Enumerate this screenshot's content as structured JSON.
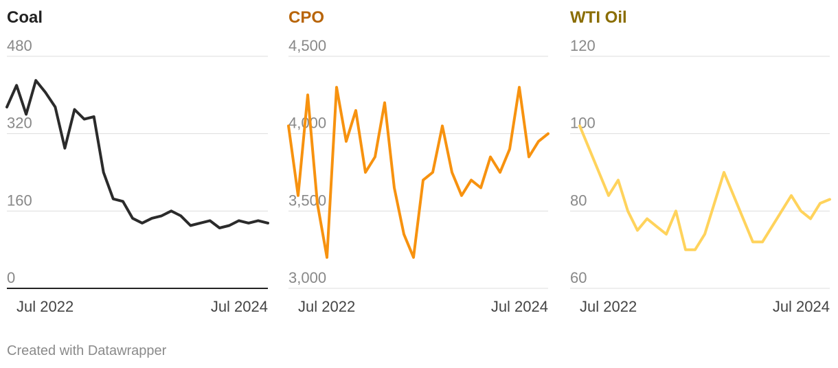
{
  "footer": {
    "credit": "Created with Datawrapper"
  },
  "chart_data": [
    {
      "type": "line",
      "title": "Coal",
      "title_color": "#222222",
      "line_color": "#2b2b2b",
      "y_ticks": [
        0,
        160,
        320,
        480
      ],
      "y_tick_labels": [
        "0",
        "160",
        "320",
        "480"
      ],
      "ylim": [
        0,
        480
      ],
      "x_tick_labels": [
        "Jul 2022",
        "Jul 2024"
      ],
      "x_ticks": [
        "2022-07",
        "2024-07"
      ],
      "xlim": [
        "2022-05",
        "2024-08"
      ],
      "x": [
        "2022-05",
        "2022-06",
        "2022-07",
        "2022-08",
        "2022-09",
        "2022-10",
        "2022-11",
        "2022-12",
        "2023-01",
        "2023-02",
        "2023-03",
        "2023-04",
        "2023-05",
        "2023-06",
        "2023-07",
        "2023-08",
        "2023-09",
        "2023-10",
        "2023-11",
        "2023-12",
        "2024-01",
        "2024-02",
        "2024-03",
        "2024-04",
        "2024-05",
        "2024-06",
        "2024-07",
        "2024-08"
      ],
      "values": [
        375,
        420,
        360,
        430,
        405,
        375,
        290,
        370,
        350,
        355,
        240,
        185,
        180,
        145,
        135,
        145,
        150,
        160,
        150,
        130,
        135,
        140,
        125,
        130,
        140,
        135,
        140,
        135
      ]
    },
    {
      "type": "line",
      "title": "CPO",
      "title_color": "#b8650a",
      "line_color": "#f7920f",
      "y_ticks": [
        3000,
        3500,
        4000,
        4500
      ],
      "y_tick_labels": [
        "3,000",
        "3,500",
        "4,000",
        "4,500"
      ],
      "ylim": [
        3000,
        4500
      ],
      "x_tick_labels": [
        "Jul 2022",
        "Jul 2024"
      ],
      "x_ticks": [
        "2022-07",
        "2024-07"
      ],
      "xlim": [
        "2022-05",
        "2024-08"
      ],
      "x": [
        "2022-05",
        "2022-06",
        "2022-07",
        "2022-08",
        "2022-09",
        "2022-10",
        "2022-11",
        "2022-12",
        "2023-01",
        "2023-02",
        "2023-03",
        "2023-04",
        "2023-05",
        "2023-06",
        "2023-07",
        "2023-08",
        "2023-09",
        "2023-10",
        "2023-11",
        "2023-12",
        "2024-01",
        "2024-02",
        "2024-03",
        "2024-04",
        "2024-05",
        "2024-06",
        "2024-07",
        "2024-08"
      ],
      "values": [
        4050,
        3600,
        4250,
        3550,
        3200,
        4300,
        3950,
        4150,
        3750,
        3850,
        4200,
        3650,
        3350,
        3200,
        3700,
        3750,
        4050,
        3750,
        3600,
        3700,
        3650,
        3850,
        3750,
        3900,
        4300,
        3850,
        3950,
        4000
      ]
    },
    {
      "type": "line",
      "title": "WTI Oil",
      "title_color": "#8a6d00",
      "line_color": "#ffd35c",
      "y_ticks": [
        60,
        80,
        100,
        120
      ],
      "y_tick_labels": [
        "60",
        "80",
        "100",
        "120"
      ],
      "ylim": [
        60,
        120
      ],
      "x_tick_labels": [
        "Jul 2022",
        "Jul 2024"
      ],
      "x_ticks": [
        "2022-07",
        "2024-07"
      ],
      "xlim": [
        "2022-05",
        "2024-08"
      ],
      "x": [
        "2022-06",
        "2022-07",
        "2022-08",
        "2022-09",
        "2022-10",
        "2022-11",
        "2022-12",
        "2023-01",
        "2023-02",
        "2023-03",
        "2023-04",
        "2023-05",
        "2023-06",
        "2023-07",
        "2023-08",
        "2023-09",
        "2023-10",
        "2023-11",
        "2023-12",
        "2024-01",
        "2024-02",
        "2024-03",
        "2024-04",
        "2024-05",
        "2024-06",
        "2024-07",
        "2024-08"
      ],
      "values": [
        102,
        96,
        90,
        84,
        88,
        80,
        75,
        78,
        76,
        74,
        80,
        70,
        70,
        74,
        82,
        90,
        84,
        78,
        72,
        72,
        76,
        80,
        84,
        80,
        78,
        82,
        83
      ]
    }
  ]
}
